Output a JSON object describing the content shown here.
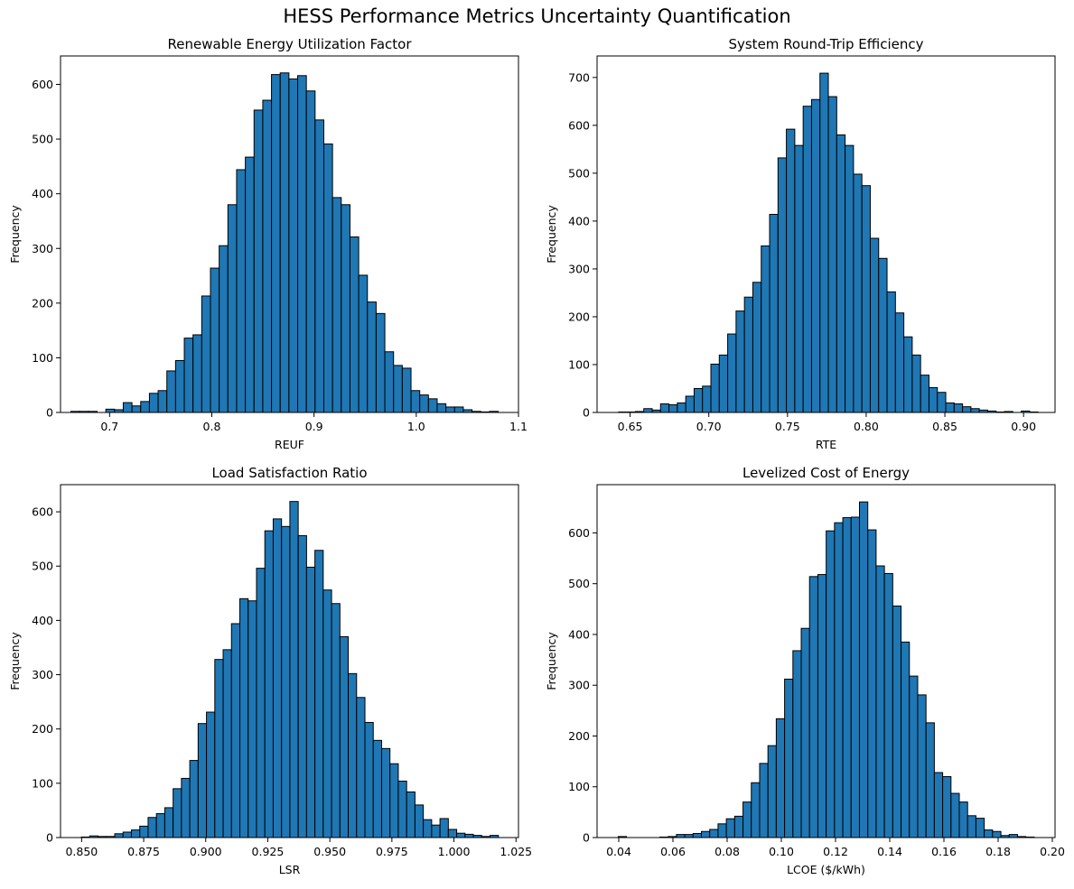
{
  "figure": {
    "title": "HESS Performance Metrics Uncertainty Quantification"
  },
  "colors": {
    "bar_fill": "#1f77b4",
    "bar_edge": "#000000"
  },
  "chart_data": [
    {
      "type": "bar",
      "title": "Renewable Energy Utilization Factor",
      "xlabel": "REUF",
      "ylabel": "Frequency",
      "xlim": [
        0.652,
        1.1
      ],
      "ylim": [
        0,
        652
      ],
      "xticks": [
        0.7,
        0.8,
        0.9,
        1.0,
        1.1
      ],
      "xtick_labels": [
        "0.7",
        "0.8",
        "0.9",
        "1.0",
        "1.1"
      ],
      "yticks": [
        0,
        100,
        200,
        300,
        400,
        500,
        600
      ],
      "bin_start": 0.6622,
      "bin_width": 0.00853,
      "values": [
        2,
        2,
        2,
        0,
        6,
        5,
        18,
        12,
        20,
        35,
        40,
        76,
        95,
        136,
        142,
        213,
        264,
        305,
        380,
        444,
        467,
        553,
        571,
        618,
        621,
        610,
        616,
        588,
        535,
        491,
        393,
        380,
        321,
        251,
        202,
        181,
        111,
        86,
        81,
        40,
        32,
        25,
        16,
        10,
        10,
        5,
        2,
        1,
        2,
        0
      ]
    },
    {
      "type": "bar",
      "title": "System Round-Trip Efficiency",
      "xlabel": "RTE",
      "ylabel": "Frequency",
      "xlim": [
        0.629,
        0.92
      ],
      "ylim": [
        0,
        745
      ],
      "xticks": [
        0.65,
        0.7,
        0.75,
        0.8,
        0.85,
        0.9
      ],
      "xtick_labels": [
        "0.65",
        "0.70",
        "0.75",
        "0.80",
        "0.85",
        "0.90"
      ],
      "yticks": [
        0,
        100,
        200,
        300,
        400,
        500,
        600,
        700
      ],
      "bin_start": 0.6427,
      "bin_width": 0.00533,
      "values": [
        1,
        1,
        2,
        8,
        5,
        18,
        16,
        20,
        34,
        50,
        55,
        101,
        120,
        164,
        212,
        241,
        272,
        348,
        414,
        532,
        592,
        558,
        640,
        654,
        709,
        660,
        580,
        558,
        498,
        474,
        364,
        322,
        252,
        208,
        158,
        120,
        78,
        52,
        42,
        20,
        18,
        12,
        8,
        5,
        3,
        1,
        2,
        0,
        3,
        1
      ]
    },
    {
      "type": "bar",
      "title": "Load Satisfaction Ratio",
      "xlabel": "LSR",
      "ylabel": "Frequency",
      "xlim": [
        0.8415,
        1.026
      ],
      "ylim": [
        0,
        650
      ],
      "xticks": [
        0.85,
        0.875,
        0.9,
        0.925,
        0.95,
        0.975,
        1.0,
        1.025
      ],
      "xtick_labels": [
        "0.850",
        "0.875",
        "0.900",
        "0.925",
        "0.950",
        "0.975",
        "1.000",
        "1.025"
      ],
      "yticks": [
        0,
        100,
        200,
        300,
        400,
        500,
        600
      ],
      "bin_start": 0.8499,
      "bin_width": 0.00336,
      "values": [
        1,
        3,
        2,
        2,
        7,
        10,
        14,
        21,
        37,
        44,
        55,
        90,
        109,
        142,
        210,
        231,
        328,
        346,
        394,
        440,
        436,
        496,
        565,
        587,
        573,
        619,
        556,
        498,
        529,
        456,
        431,
        370,
        302,
        258,
        212,
        179,
        164,
        136,
        104,
        84,
        60,
        33,
        23,
        35,
        15,
        8,
        6,
        4,
        2,
        4
      ]
    },
    {
      "type": "bar",
      "title": "Levelized Cost of Energy",
      "xlabel": "LCOE ($/kWh)",
      "ylabel": "Frequency",
      "xlim": [
        0.032,
        0.201
      ],
      "ylim": [
        0,
        695
      ],
      "xticks": [
        0.04,
        0.06,
        0.08,
        0.1,
        0.12,
        0.14,
        0.16,
        0.18,
        0.2
      ],
      "xtick_labels": [
        "0.04",
        "0.06",
        "0.08",
        "0.10",
        "0.12",
        "0.14",
        "0.16",
        "0.18",
        "0.20"
      ],
      "yticks": [
        0,
        100,
        200,
        300,
        400,
        500,
        600
      ],
      "bin_start": 0.0398,
      "bin_width": 0.00307,
      "values": [
        2,
        0,
        0,
        0,
        0,
        1,
        2,
        6,
        6,
        8,
        12,
        16,
        27,
        37,
        42,
        70,
        108,
        146,
        181,
        234,
        312,
        368,
        412,
        514,
        518,
        604,
        620,
        630,
        631,
        661,
        606,
        535,
        520,
        456,
        385,
        318,
        281,
        226,
        128,
        120,
        87,
        70,
        43,
        38,
        15,
        12,
        4,
        6,
        2,
        1
      ]
    }
  ]
}
